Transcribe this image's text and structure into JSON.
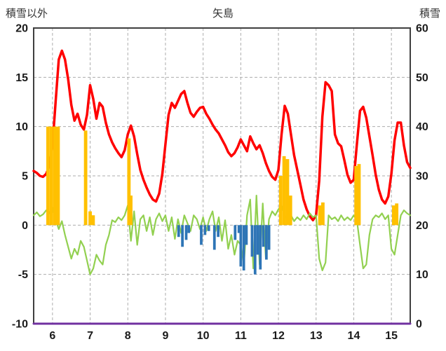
{
  "chart_data": {
    "type": "mixed",
    "title": "矢島",
    "x_axis": {
      "min": 5.5,
      "max": 15.5,
      "ticks": [
        6,
        7,
        8,
        9,
        10,
        11,
        12,
        13,
        14,
        15
      ]
    },
    "left_axis": {
      "title": "積雪以外",
      "min": -10,
      "max": 20,
      "ticks": [
        20,
        15,
        10,
        5,
        0,
        -5,
        -10
      ]
    },
    "right_axis": {
      "title": "積雪",
      "min": 0,
      "max": 60,
      "ticks": [
        60,
        50,
        40,
        30,
        20,
        10,
        0
      ]
    },
    "grid": {
      "dashed": true,
      "color": "#ADADAD"
    },
    "frame_color": "#3f3f3f",
    "label_color": "#1a1a1a",
    "series": [
      {
        "name": "red-line",
        "type": "line",
        "axis": "left",
        "color": "#FF0000",
        "width": 3.5,
        "x_start": 5.5,
        "x_step": 0.0833333,
        "values": [
          5.5,
          5.3,
          5.0,
          4.9,
          5.2,
          6.0,
          8.0,
          12.5,
          16.8,
          17.7,
          16.8,
          14.8,
          12.2,
          10.6,
          11.3,
          10.2,
          9.7,
          11.2,
          14.2,
          12.8,
          10.8,
          12.4,
          12.0,
          10.4,
          9.2,
          8.4,
          7.8,
          7.3,
          6.9,
          7.6,
          9.2,
          10.1,
          9.0,
          7.2,
          5.6,
          4.6,
          3.8,
          3.1,
          2.6,
          2.4,
          3.2,
          5.2,
          8.2,
          11.2,
          12.4,
          11.9,
          12.6,
          13.3,
          13.6,
          12.4,
          11.4,
          11.0,
          11.5,
          11.9,
          12.0,
          11.3,
          10.8,
          10.2,
          9.7,
          9.3,
          8.7,
          8.1,
          7.4,
          7.0,
          7.3,
          7.9,
          8.7,
          8.1,
          7.5,
          9.0,
          8.3,
          7.7,
          8.1,
          7.3,
          6.3,
          5.5,
          4.9,
          4.6,
          5.6,
          9.2,
          12.1,
          11.3,
          9.2,
          7.1,
          5.6,
          4.1,
          2.6,
          1.6,
          0.9,
          0.5,
          1.0,
          4.5,
          11.0,
          14.5,
          14.2,
          13.6,
          9.2,
          8.3,
          8.0,
          6.6,
          5.1,
          4.3,
          4.6,
          8.2,
          11.6,
          12.0,
          10.9,
          9.0,
          7.1,
          5.1,
          3.6,
          2.6,
          2.2,
          2.9,
          5.2,
          8.6,
          10.4,
          10.4,
          8.1,
          6.4,
          5.8
        ]
      },
      {
        "name": "green-line",
        "type": "line",
        "axis": "left",
        "color": "#92D050",
        "width": 2.2,
        "x_start": 5.5,
        "x_step": 0.0833333,
        "values": [
          1.0,
          1.3,
          0.9,
          1.1,
          1.5,
          1.2,
          1.8,
          0.6,
          -0.4,
          0.4,
          -1.0,
          -2.2,
          -3.4,
          -2.4,
          -3.0,
          -1.6,
          -2.2,
          -3.6,
          -5.0,
          -4.4,
          -3.0,
          -3.6,
          -4.0,
          -2.0,
          -1.0,
          0.5,
          0.3,
          0.8,
          0.5,
          1.0,
          2.0,
          -1.6,
          1.4,
          -2.0,
          0.6,
          1.0,
          -0.6,
          0.8,
          -1.0,
          0.6,
          1.2,
          0.4,
          1.0,
          -0.6,
          0.8,
          -1.4,
          0.6,
          -0.8,
          1.0,
          0.2,
          -0.6,
          1.0,
          0.6,
          -0.4,
          0.8,
          -0.6,
          0.6,
          1.4,
          -0.6,
          0.8,
          -1.6,
          0.5,
          -2.4,
          -1.0,
          -3.0,
          -1.6,
          -2.0,
          -4.0,
          1.0,
          2.6,
          -4.4,
          3.0,
          -4.0,
          2.2,
          -3.4,
          0.6,
          1.4,
          1.0,
          1.6,
          2.0,
          1.0,
          0.6,
          1.0,
          0.4,
          0.8,
          0.5,
          1.0,
          0.6,
          1.2,
          0.8,
          1.0,
          -3.4,
          -4.6,
          -3.8,
          1.0,
          0.6,
          0.8,
          0.4,
          1.0,
          0.5,
          0.8,
          0.5,
          1.0,
          0.5,
          -2.0,
          -4.4,
          -4.0,
          -1.0,
          0.6,
          1.0,
          0.8,
          1.2,
          0.6,
          1.0,
          -2.4,
          -3.0,
          -1.0,
          1.0,
          1.5,
          1.2,
          1.0
        ]
      },
      {
        "name": "orange-bars",
        "type": "bar",
        "axis": "left",
        "color": "#FFC000",
        "bar_width": 0.09,
        "points": [
          [
            5.88,
            10
          ],
          [
            5.97,
            10
          ],
          [
            6.06,
            10
          ],
          [
            6.15,
            10
          ],
          [
            6.88,
            9.6
          ],
          [
            7.0,
            1.4
          ],
          [
            7.08,
            1.0
          ],
          [
            8.03,
            8.8
          ],
          [
            8.08,
            3.0
          ],
          [
            12.06,
            5.0
          ],
          [
            12.15,
            7.0
          ],
          [
            12.24,
            6.7
          ],
          [
            12.32,
            3.0
          ],
          [
            13.1,
            2.0
          ],
          [
            13.18,
            2.3
          ],
          [
            14.06,
            6.0
          ],
          [
            14.14,
            6.2
          ],
          [
            15.06,
            2.0
          ],
          [
            15.14,
            2.2
          ]
        ]
      },
      {
        "name": "blue-bars",
        "type": "bar",
        "axis": "left",
        "color": "#2E75B6",
        "bar_width": 0.07,
        "points": [
          [
            9.35,
            -1.2
          ],
          [
            9.45,
            -2.2
          ],
          [
            9.55,
            -1.5
          ],
          [
            9.62,
            -0.8
          ],
          [
            9.95,
            -2.0
          ],
          [
            10.05,
            -1.0
          ],
          [
            10.15,
            -0.6
          ],
          [
            10.3,
            -2.5
          ],
          [
            10.4,
            -1.2
          ],
          [
            10.85,
            -1.5
          ],
          [
            10.95,
            -0.8
          ],
          [
            11.0,
            -4.2
          ],
          [
            11.08,
            -4.6
          ],
          [
            11.15,
            -2.0
          ],
          [
            11.3,
            -3.2
          ],
          [
            11.38,
            -5.0
          ],
          [
            11.45,
            -3.0
          ],
          [
            11.52,
            -4.5
          ],
          [
            11.6,
            -2.2
          ],
          [
            11.68,
            -3.5
          ],
          [
            11.75,
            -2.5
          ]
        ]
      },
      {
        "name": "purple-line",
        "type": "line",
        "axis": "right",
        "color": "#7030A0",
        "width": 3,
        "points": [
          [
            5.5,
            0
          ],
          [
            15.5,
            0
          ]
        ]
      }
    ]
  }
}
